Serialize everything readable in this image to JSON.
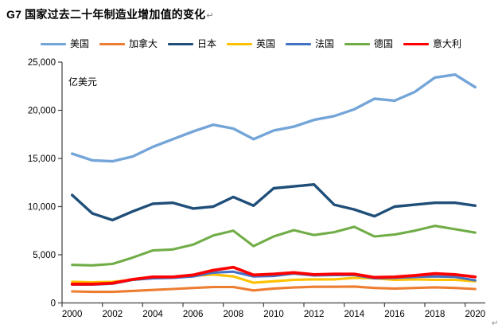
{
  "page": {
    "background": "#FFFFFF",
    "return_mark": "↵"
  },
  "title": {
    "text": "G7 国家过去二十年制造业增加值的变化",
    "return_mark": "↵"
  },
  "axis": {
    "color": "#404040",
    "label_color": "#000000"
  },
  "chart_data": {
    "type": "line",
    "title": "G7 国家过去二十年制造业增加值的变化",
    "ylabel": "亿美元",
    "xlabel": "",
    "ylim": [
      0,
      25000
    ],
    "y_ticks": [
      0,
      5000,
      10000,
      15000,
      20000,
      25000
    ],
    "y_tick_labels": [
      "0",
      "5,000",
      "10,000",
      "15,000",
      "20,000",
      "25,000"
    ],
    "x_tick_labels": [
      "2000",
      "2002",
      "2004",
      "2006",
      "2008",
      "2010",
      "2012",
      "2014",
      "2016",
      "2018",
      "2020"
    ],
    "x": [
      2000,
      2001,
      2002,
      2003,
      2004,
      2005,
      2006,
      2007,
      2008,
      2009,
      2010,
      2011,
      2012,
      2013,
      2014,
      2015,
      2016,
      2017,
      2018,
      2019,
      2020
    ],
    "grid": false,
    "legend_position": "top",
    "series": [
      {
        "id": "usa",
        "name": "美国",
        "color": "#74A5D8",
        "width": 3.4,
        "values": [
          15500,
          14800,
          14700,
          15200,
          16200,
          17000,
          17800,
          18500,
          18100,
          17000,
          17900,
          18300,
          19000,
          19400,
          20100,
          21200,
          21000,
          21900,
          23400,
          23700,
          22400
        ]
      },
      {
        "id": "canada",
        "name": "加拿大",
        "color": "#ED7D31",
        "width": 3.1,
        "values": [
          1200,
          1150,
          1150,
          1250,
          1350,
          1450,
          1550,
          1650,
          1650,
          1300,
          1500,
          1600,
          1680,
          1680,
          1700,
          1550,
          1500,
          1550,
          1620,
          1550,
          1450
        ]
      },
      {
        "id": "japan",
        "name": "日本",
        "color": "#1F4E79",
        "width": 3.4,
        "values": [
          11200,
          9300,
          8600,
          9500,
          10300,
          10400,
          9800,
          10000,
          11000,
          10100,
          11900,
          12100,
          12300,
          10200,
          9700,
          9000,
          10000,
          10200,
          10400,
          10400,
          10100
        ]
      },
      {
        "id": "uk",
        "name": "英国",
        "color": "#FFC000",
        "width": 3.1,
        "values": [
          2200,
          2150,
          2200,
          2400,
          2600,
          2650,
          2800,
          2950,
          2750,
          2100,
          2250,
          2400,
          2450,
          2450,
          2600,
          2550,
          2400,
          2450,
          2400,
          2400,
          2250
        ]
      },
      {
        "id": "france",
        "name": "法国",
        "color": "#4472C4",
        "width": 3.1,
        "values": [
          1900,
          1900,
          2000,
          2400,
          2550,
          2600,
          2750,
          3150,
          3250,
          2750,
          2800,
          3050,
          2850,
          2900,
          2900,
          2550,
          2600,
          2700,
          2750,
          2700,
          2350
        ]
      },
      {
        "id": "germany",
        "name": "德国",
        "color": "#70AD47",
        "width": 3.1,
        "values": [
          3950,
          3900,
          4050,
          4700,
          5450,
          5550,
          6050,
          7000,
          7500,
          5900,
          6900,
          7550,
          7050,
          7350,
          7900,
          6900,
          7100,
          7500,
          8000,
          7650,
          7300
        ]
      },
      {
        "id": "italy",
        "name": "意大利",
        "color": "#FE0000",
        "width": 3.7,
        "values": [
          1950,
          1950,
          2050,
          2450,
          2700,
          2700,
          2900,
          3400,
          3700,
          2900,
          3000,
          3150,
          2950,
          3000,
          3000,
          2650,
          2700,
          2850,
          3050,
          2950,
          2700
        ]
      }
    ]
  }
}
